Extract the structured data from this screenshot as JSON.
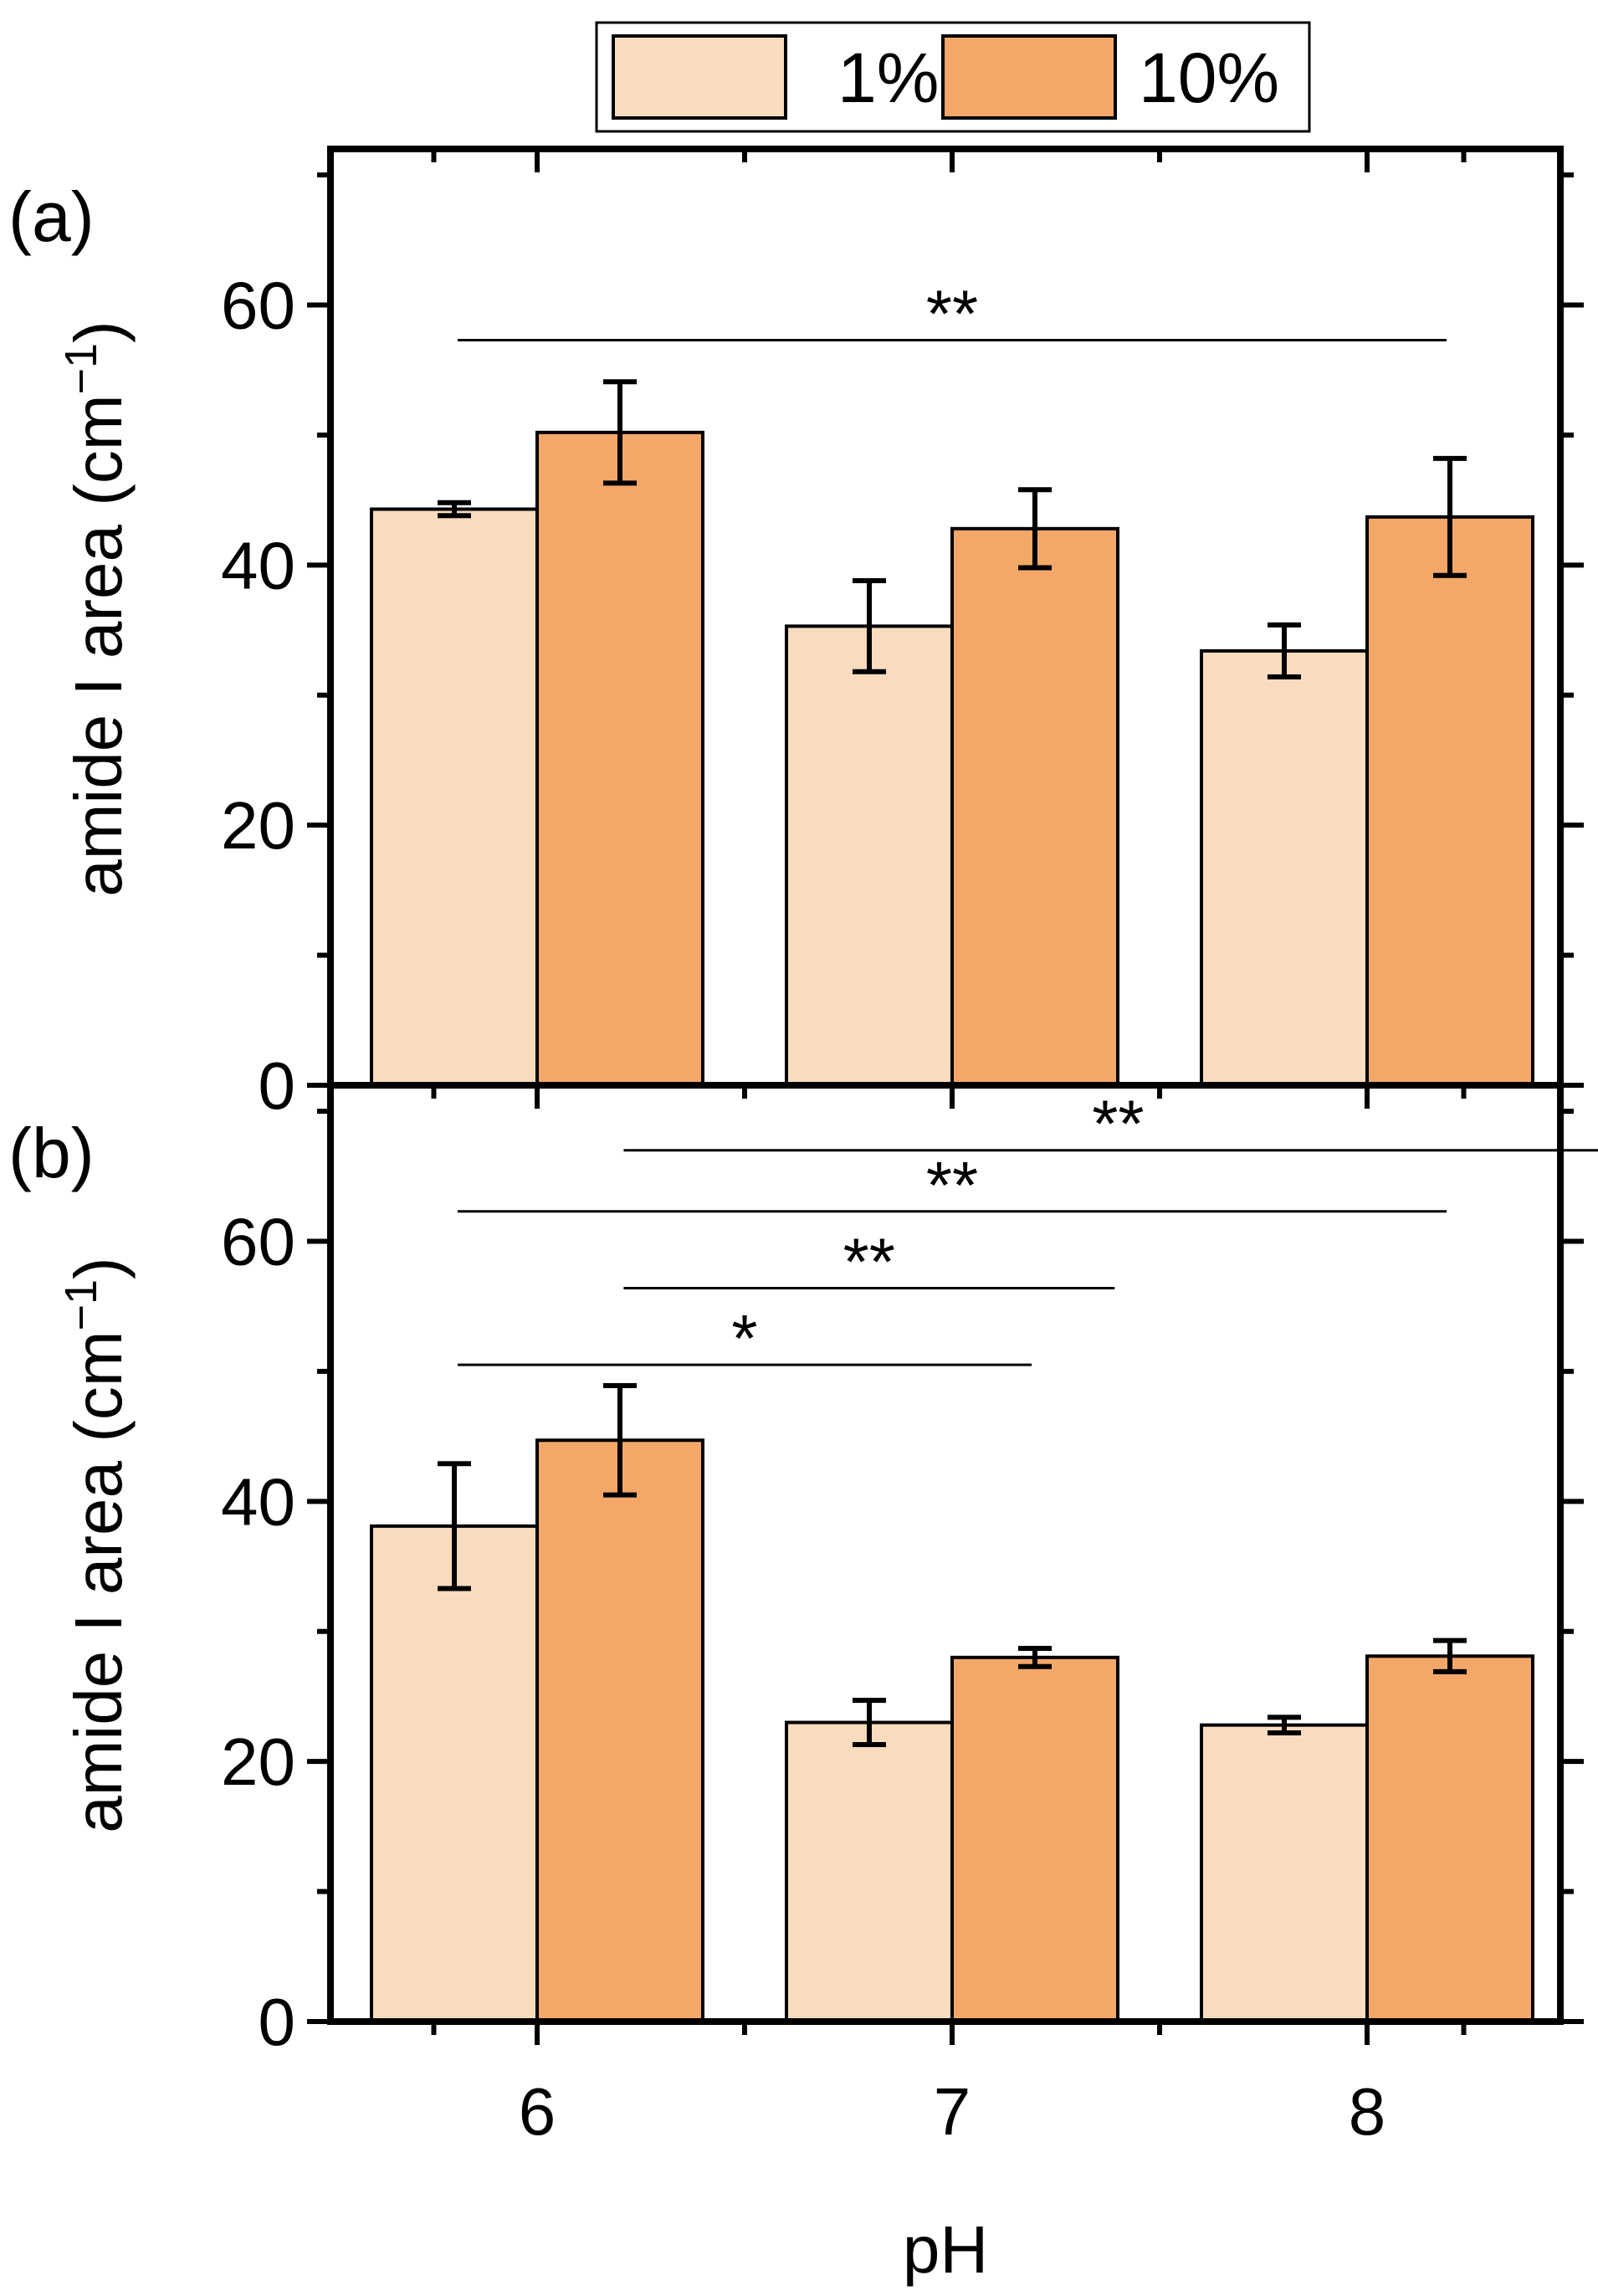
{
  "colors": {
    "s1": "#f9dbbd",
    "s2": "#f3a769"
  },
  "legend": [
    {
      "label": "1%",
      "color": "#f9dbbd"
    },
    {
      "label": "10%",
      "color": "#f3a769"
    }
  ],
  "chart_data": [
    {
      "type": "bar",
      "panel_label": "(a)",
      "categories": [
        "6",
        "7",
        "8"
      ],
      "series": [
        {
          "name": "1%",
          "values": [
            44.3,
            35.3,
            33.4
          ],
          "errors": [
            0.5,
            3.5,
            2.0
          ]
        },
        {
          "name": "10%",
          "values": [
            50.2,
            42.8,
            43.7
          ],
          "errors": [
            3.9,
            3.0,
            4.5
          ]
        }
      ],
      "ylabel_main": "amide I area (cm",
      "ylabel_sup": "−1",
      "ylabel_close": ")",
      "ylim": [
        0,
        72
      ],
      "yticks": [
        0,
        20,
        40,
        60
      ],
      "significance": [
        {
          "from": 0,
          "to": 2,
          "level": 57.3,
          "label": "**"
        }
      ]
    },
    {
      "type": "bar",
      "panel_label": "(b)",
      "categories": [
        "6",
        "7",
        "8"
      ],
      "xlabel": "pH",
      "series": [
        {
          "name": "1%",
          "values": [
            38.1,
            23.0,
            22.8
          ],
          "errors": [
            4.8,
            1.7,
            0.6
          ]
        },
        {
          "name": "10%",
          "values": [
            44.7,
            28.0,
            28.1
          ],
          "errors": [
            4.2,
            0.7,
            1.2
          ]
        }
      ],
      "ylabel_main": "amide I area (cm",
      "ylabel_sup": "−1",
      "ylabel_close": ")",
      "ylim": [
        0,
        72
      ],
      "yticks": [
        0,
        20,
        40,
        60
      ],
      "significance": [
        {
          "from": 0,
          "to": 1,
          "level": 50.5,
          "label": "*"
        },
        {
          "from": 0.4,
          "to": 1.2,
          "level": 56.4,
          "label": "**"
        },
        {
          "from": 0,
          "to": 2,
          "level": 62.3,
          "label": "**"
        },
        {
          "from": 0.4,
          "to": 2.4,
          "level": 67.0,
          "label": "**"
        }
      ]
    }
  ]
}
